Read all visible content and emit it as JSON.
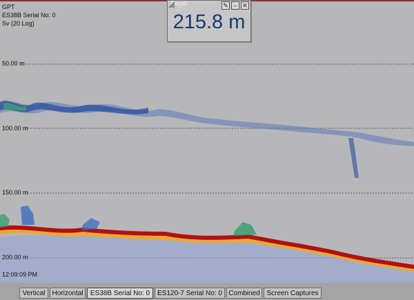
{
  "info": {
    "line1": "GPT",
    "line2": "ES38B Serial No: 0",
    "line3": "Sv (20 Log)"
  },
  "depth_axis": [
    "50.00 m",
    "100.00 m",
    "150.00 m",
    "200.00 m"
  ],
  "time_label": "12:09:09 PM",
  "depth_window": {
    "title": "Depth",
    "value": "215.8 m",
    "buttons": [
      "pin-icon",
      "minimize-icon",
      "close-icon"
    ]
  },
  "tabs": [
    "Vertical",
    "Horizontal",
    "ES38B Serial No: 0",
    "ES120-7 Serial No: 0",
    "Combined",
    "Screen Captures"
  ],
  "active_tab": "ES38B Serial No: 0",
  "colors": {
    "background": "#b7b7b9",
    "bottom_echo": "#b01010",
    "bottom_under": "#e8a838",
    "fish_echo": "#2a4ea0",
    "depth_text": "#183a6e"
  }
}
